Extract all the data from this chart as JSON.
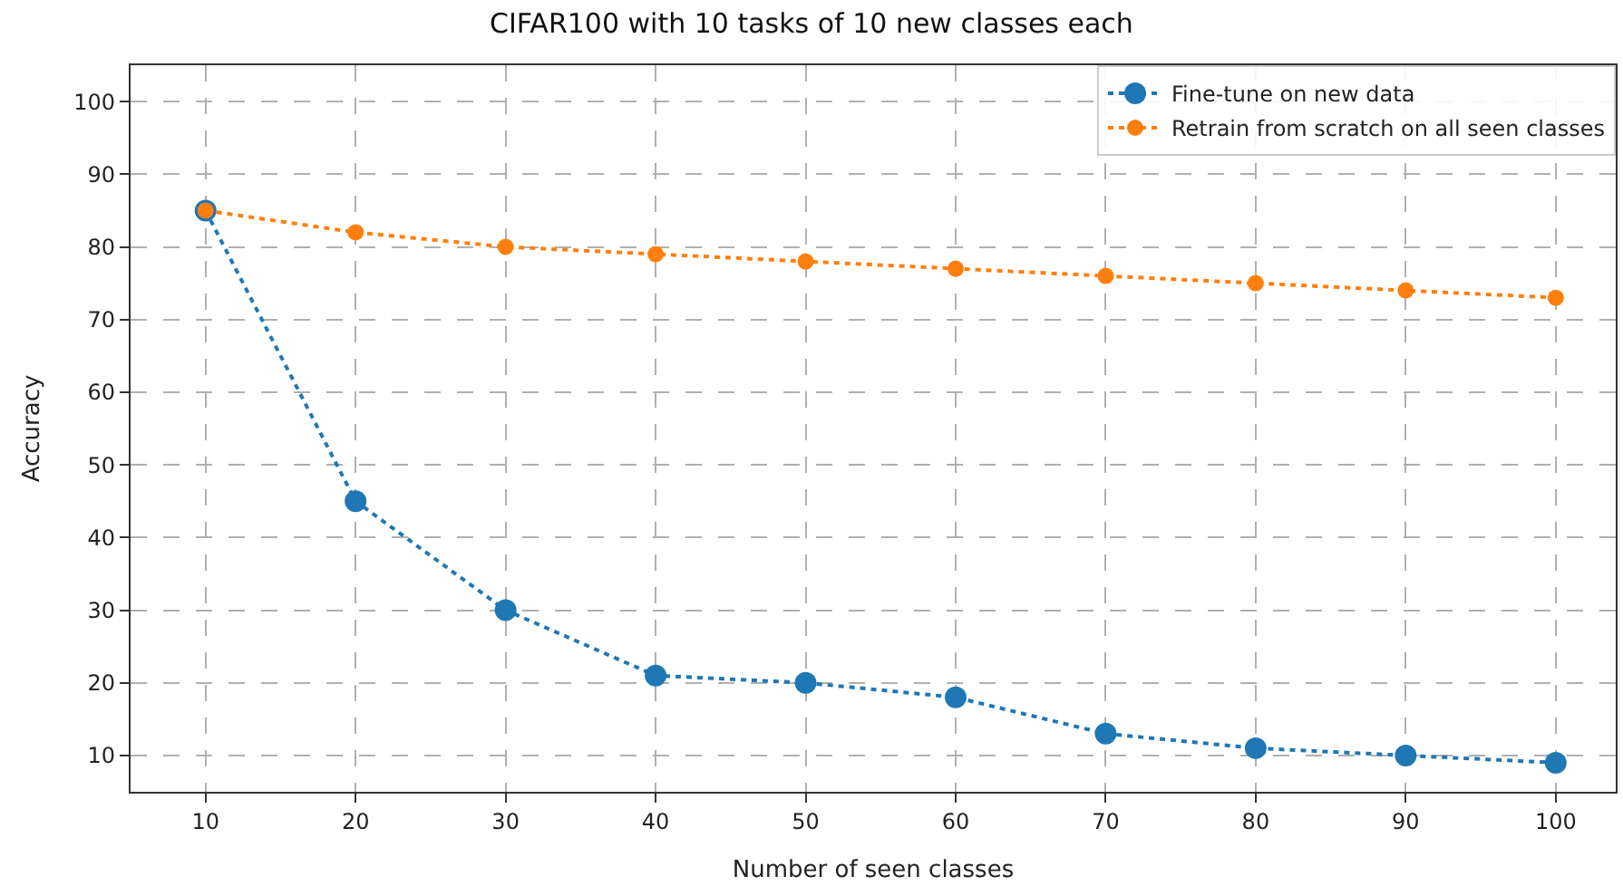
{
  "chart_data": {
    "type": "line",
    "title": "CIFAR100 with 10 tasks of 10 new classes each",
    "xlabel": "Number of seen classes",
    "ylabel": "Accuracy",
    "x": [
      10,
      20,
      30,
      40,
      50,
      60,
      70,
      80,
      90,
      100
    ],
    "series": [
      {
        "name": "Fine-tune on new data",
        "color": "#1f77b4",
        "values": [
          85,
          45,
          30,
          21,
          20,
          18,
          13,
          11,
          10,
          9
        ]
      },
      {
        "name": "Retrain from scratch on all seen classes",
        "color": "#ff7f0e",
        "values": [
          85,
          82,
          80,
          79,
          78,
          77,
          76,
          75,
          74,
          73
        ]
      }
    ],
    "xlim": [
      5,
      104
    ],
    "ylim": [
      5,
      105
    ],
    "xticks": [
      10,
      20,
      30,
      40,
      50,
      60,
      70,
      80,
      90,
      100
    ],
    "yticks": [
      10,
      20,
      30,
      40,
      50,
      60,
      70,
      80,
      90,
      100
    ],
    "grid": true,
    "legend": "top right",
    "marker": "circle",
    "line_style": "dotted"
  }
}
